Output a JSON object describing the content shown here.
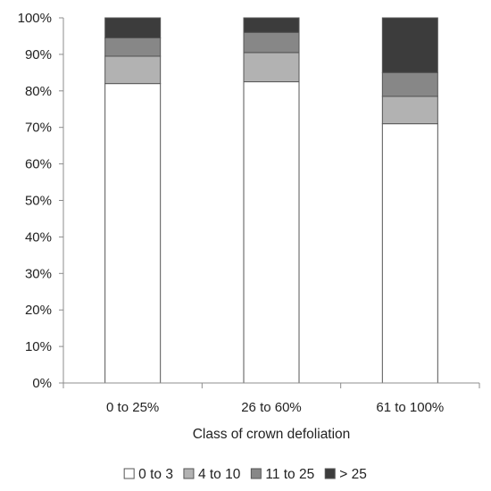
{
  "chart_data": {
    "type": "bar",
    "stacked": true,
    "title": "",
    "xlabel": "Class of crown defoliation",
    "ylabel": "",
    "ylim": [
      0,
      100
    ],
    "y_tick_labels": [
      "0%",
      "10%",
      "20%",
      "30%",
      "40%",
      "50%",
      "60%",
      "70%",
      "80%",
      "90%",
      "100%"
    ],
    "categories": [
      "0 to 25%",
      "26 to 60%",
      "61 to 100%"
    ],
    "series": [
      {
        "name": "0 to 3",
        "color": "#ffffff",
        "values": [
          82,
          82.5,
          71
        ]
      },
      {
        "name": "4 to 10",
        "color": "#b2b2b2",
        "values": [
          7.5,
          8,
          7.5
        ]
      },
      {
        "name": "11 to 25",
        "color": "#878787",
        "values": [
          5,
          5.5,
          6.5
        ]
      },
      {
        "name": "> 25",
        "color": "#3c3c3c",
        "values": [
          5.5,
          4,
          15
        ]
      }
    ],
    "legend_position": "bottom",
    "grid": false
  }
}
